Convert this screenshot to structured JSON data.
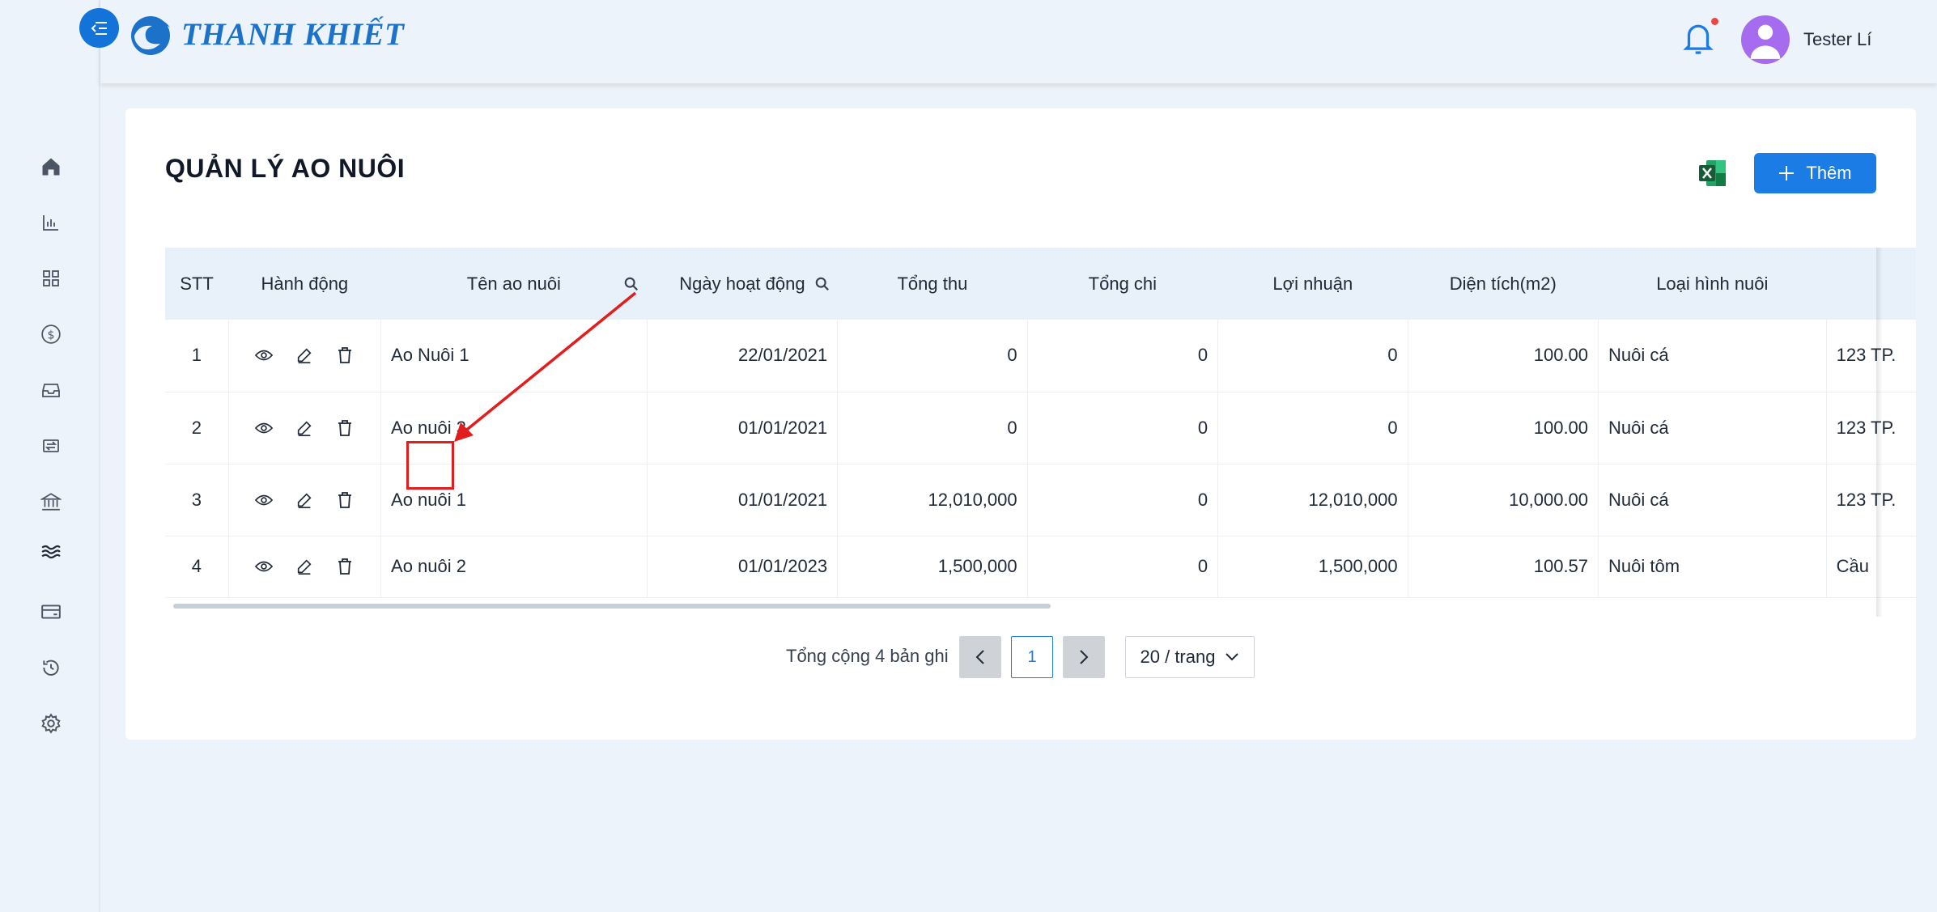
{
  "brand": {
    "name": "THANH KHIẾT"
  },
  "user": {
    "name": "Tester Lí"
  },
  "page": {
    "title": "QUẢN LÝ AO NUÔI",
    "add_label": "Thêm"
  },
  "sidebar": {
    "icons": [
      "home-icon",
      "bar-chart-icon",
      "grid-icon",
      "dollar-icon",
      "inbox-icon",
      "exchange-icon",
      "bank-icon",
      "waves-icon",
      "wallet-icon",
      "history-icon",
      "settings-icon"
    ]
  },
  "table": {
    "headers": [
      "STT",
      "Hành động",
      "Tên ao nuôi",
      "Ngày hoạt động",
      "Tổng thu",
      "Tổng chi",
      "Lợi nhuận",
      "Diện tích(m2)",
      "Loại hình nuôi"
    ],
    "rows": [
      {
        "stt": "1",
        "name": "Ao Nuôi 1",
        "date": "22/01/2021",
        "revenue": "0",
        "expense": "0",
        "profit": "0",
        "area": "100.00",
        "type": "Nuôi cá",
        "addr": "123 TP."
      },
      {
        "stt": "2",
        "name": "Ao nuôi 3",
        "date": "01/01/2021",
        "revenue": "0",
        "expense": "0",
        "profit": "0",
        "area": "100.00",
        "type": "Nuôi cá",
        "addr": "123 TP."
      },
      {
        "stt": "3",
        "name": "Ao nuôi 1",
        "date": "01/01/2021",
        "revenue": "12,010,000",
        "expense": "0",
        "profit": "12,010,000",
        "area": "10,000.00",
        "type": "Nuôi cá",
        "addr": "123 TP."
      },
      {
        "stt": "4",
        "name": "Ao nuôi 2",
        "date": "01/01/2023",
        "revenue": "1,500,000",
        "expense": "0",
        "profit": "1,500,000",
        "area": "100.57",
        "type": "Nuôi tôm",
        "addr": "Cầu"
      }
    ]
  },
  "pagination": {
    "total_text": "Tổng cộng 4 bản ghi",
    "current_page": "1",
    "page_size": "20 / trang"
  },
  "colors": {
    "primary": "#1c7ce5",
    "annotation": "#e11d1d"
  }
}
